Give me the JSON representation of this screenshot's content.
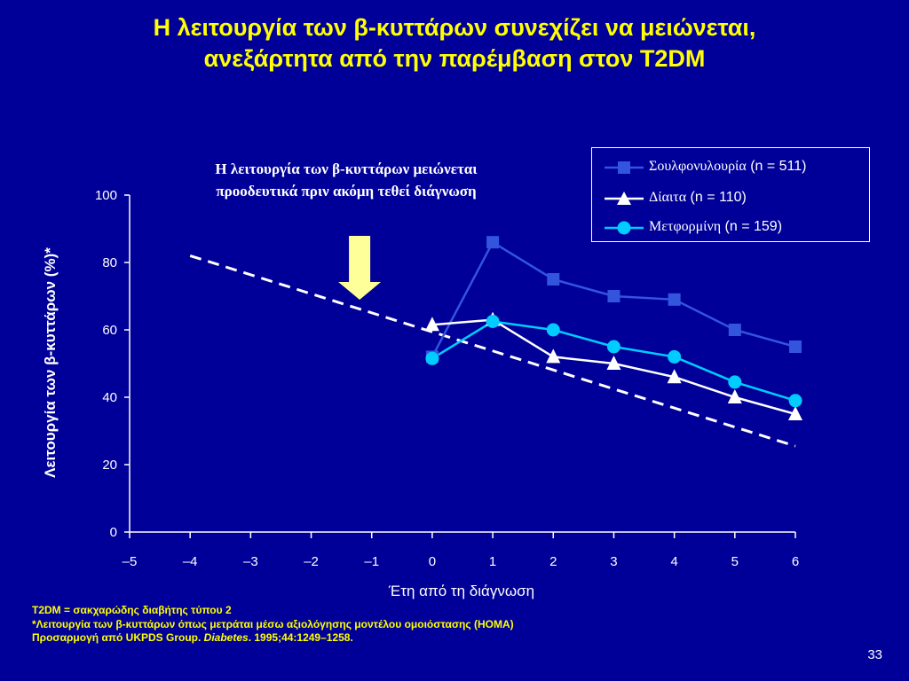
{
  "slide": {
    "title_line1": "Η λειτουργία των β-κυττάρων συνεχίζει να μειώνεται,",
    "title_line2": "ανεξάρτητα από την παρέμβαση στον T2DM",
    "annotation_line1": "Η λειτουργία των β-κυττάρων μειώνεται",
    "annotation_line2": "προοδευτικά πριν ακόμη τεθεί διάγνωση",
    "footnote1": "T2DM = σακχαρώδης διαβήτης τύπου 2",
    "footnote2": "*Λειτουργία των β-κυττάρων όπως μετράται μέσω αξιολόγησης μοντέλου ομοιόστασης (HOMA)",
    "footnote3_prefix": "Προσαρμογή από UKPDS Group. ",
    "footnote3_journal": "Diabetes",
    "footnote3_suffix": ". 1995;44:1249–1258.",
    "page_number": "33",
    "arrow_color": "#ffff99",
    "background_color": "#000099",
    "title_color": "#ffff00"
  },
  "legend": [
    {
      "name": "Σουλφονυλουρία",
      "n": "(n = 511)",
      "marker": "square",
      "color": "#3355dd"
    },
    {
      "name": "Δίαιτα",
      "n": "(n = 110)",
      "marker": "triangle",
      "color": "#ffffff"
    },
    {
      "name": "Μετφορμίνη",
      "n": "(n = 159)",
      "marker": "circle",
      "color": "#00ccff"
    }
  ],
  "chart_data": {
    "type": "line",
    "xlabel": "Έτη από τη διάγνωση",
    "ylabel": "Λειτουργία των β-κυττάρων (%)*",
    "xlim": [
      -5,
      6
    ],
    "ylim": [
      0,
      100
    ],
    "x_ticks": [
      "–5",
      "–4",
      "–3",
      "–2",
      "–1",
      "0",
      "1",
      "2",
      "3",
      "4",
      "5",
      "6"
    ],
    "x_tick_values": [
      -5,
      -4,
      -3,
      -2,
      -1,
      0,
      1,
      2,
      3,
      4,
      5,
      6
    ],
    "y_ticks": [
      0,
      20,
      40,
      60,
      80,
      100
    ],
    "grid": false,
    "legend_position": "top-right",
    "series": [
      {
        "name": "Σουλφονυλουρία",
        "marker": "square",
        "color": "#3355dd",
        "x": [
          0,
          1,
          2,
          3,
          4,
          5,
          6
        ],
        "y": [
          52,
          86,
          75,
          70,
          69,
          60,
          55
        ]
      },
      {
        "name": "Δίαιτα",
        "marker": "triangle",
        "color": "#ffffff",
        "x": [
          0,
          1,
          2,
          3,
          4,
          5,
          6
        ],
        "y": [
          61.5,
          63,
          52,
          50,
          46,
          40,
          35
        ]
      },
      {
        "name": "Μετφορμίνη",
        "marker": "circle",
        "color": "#00ccff",
        "x": [
          0,
          1,
          2,
          3,
          4,
          5,
          6
        ],
        "y": [
          51.5,
          62.5,
          60,
          55,
          52,
          44.5,
          39
        ]
      }
    ],
    "trend_line": {
      "style": "dashed",
      "color": "#ffffff",
      "x": [
        -4,
        6
      ],
      "y": [
        82,
        25.5
      ]
    },
    "arrow_at_x": -1.2
  }
}
